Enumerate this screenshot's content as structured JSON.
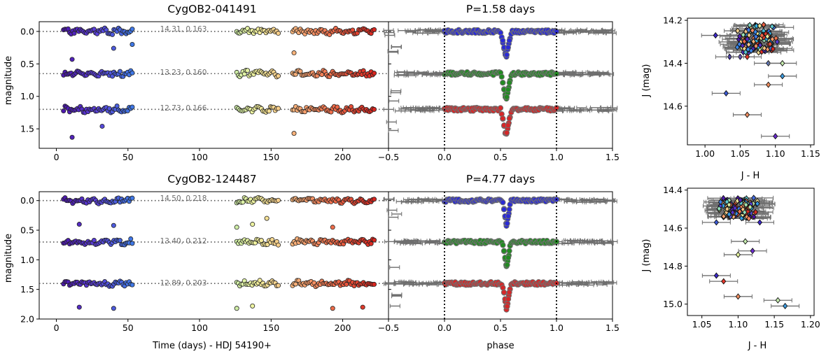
{
  "chart_data": [
    {
      "id": "top",
      "type": "scatter",
      "title": "CygOB2-041491",
      "light_curve": {
        "xlabel": "",
        "ylabel": "magnitude",
        "xlim": [
          -12,
          232
        ],
        "ylim": [
          1.8,
          -0.15
        ],
        "xticks": [
          0,
          50,
          100,
          150,
          200
        ],
        "yticks": [
          0.0,
          0.5,
          1.0,
          1.5
        ],
        "observing_windows": [
          [
            5,
            53
          ],
          [
            126,
            155
          ],
          [
            165,
            222
          ]
        ],
        "offsets": [
          0.0,
          0.65,
          1.2
        ],
        "annotations": [
          "14.31,  0.163",
          "13.23,  0.160",
          "12.73,  0.166"
        ],
        "dip_points": [
          [
            11,
            0.43
          ],
          [
            40,
            0.26
          ],
          [
            53,
            0.2
          ],
          [
            166,
            0.33
          ],
          [
            11,
            1.63
          ],
          [
            32,
            1.46
          ],
          [
            166,
            1.57
          ]
        ]
      },
      "phase": {
        "title": "P=1.58 days",
        "xlabel": "",
        "xlim": [
          -0.5,
          1.5
        ],
        "xticks": [
          -0.5,
          0.0,
          0.5,
          1.0,
          1.5
        ],
        "eclipse_center": 0.55,
        "eclipse_depth": 0.42,
        "eclipse_halfwidth": 0.05,
        "vlines": [
          0.0,
          1.0
        ],
        "band_colors": [
          "#2b2bd6",
          "#228b22",
          "#d62728"
        ]
      },
      "color_mag": {
        "xlabel": "J - H",
        "ylabel": "J (mag)",
        "xlim": [
          0.975,
          1.155
        ],
        "ylim": [
          14.78,
          14.19
        ],
        "xticks": [
          1.0,
          1.05,
          1.1,
          1.15
        ],
        "yticks": [
          14.2,
          14.4,
          14.6
        ],
        "cluster": {
          "x_center": 1.075,
          "x_spread": 0.05,
          "y_min": 14.22,
          "y_max": 14.35
        },
        "outliers": [
          {
            "x": 1.015,
            "y": 14.27,
            "color": "#3b28cc"
          },
          {
            "x": 1.035,
            "y": 14.37,
            "color": "#3b28cc"
          },
          {
            "x": 1.05,
            "y": 14.37,
            "color": "#5a3fd8"
          },
          {
            "x": 1.06,
            "y": 14.37,
            "color": "#e8372a"
          },
          {
            "x": 1.09,
            "y": 14.4,
            "color": "#5a7fe8"
          },
          {
            "x": 1.11,
            "y": 14.4,
            "color": "#c6ecae"
          },
          {
            "x": 1.11,
            "y": 14.46,
            "color": "#3c9be0"
          },
          {
            "x": 1.09,
            "y": 14.5,
            "color": "#f08d5f"
          },
          {
            "x": 1.03,
            "y": 14.54,
            "color": "#3b5ad6"
          },
          {
            "x": 1.06,
            "y": 14.64,
            "color": "#f08d5f"
          },
          {
            "x": 1.1,
            "y": 14.74,
            "color": "#6a2cd0"
          }
        ]
      }
    },
    {
      "id": "bottom",
      "type": "scatter",
      "title": "CygOB2-124487",
      "light_curve": {
        "xlabel": "Time (days) - HDJ 54190+",
        "ylabel": "magnitude",
        "xlim": [
          -12,
          232
        ],
        "ylim": [
          2.0,
          -0.15
        ],
        "xticks": [
          0,
          50,
          100,
          150,
          200
        ],
        "yticks": [
          0.0,
          0.5,
          1.0,
          1.5,
          2.0
        ],
        "observing_windows": [
          [
            5,
            53
          ],
          [
            126,
            155
          ],
          [
            165,
            222
          ]
        ],
        "offsets": [
          0.0,
          0.7,
          1.4
        ],
        "annotations": [
          "14.50,  0.218",
          "13.40,  0.212",
          "12.89,  0.203"
        ],
        "dip_points": [
          [
            16,
            0.4
          ],
          [
            40,
            0.42
          ],
          [
            126,
            0.45
          ],
          [
            137,
            0.4
          ],
          [
            147,
            0.3
          ],
          [
            193,
            0.45
          ],
          [
            16,
            1.8
          ],
          [
            40,
            1.82
          ],
          [
            126,
            1.82
          ],
          [
            137,
            1.78
          ],
          [
            193,
            1.82
          ],
          [
            214,
            1.8
          ]
        ]
      },
      "phase": {
        "title": "P=4.77 days",
        "xlabel": "phase",
        "xlim": [
          -0.5,
          1.5
        ],
        "xticks": [
          -0.5,
          0.0,
          0.5,
          1.0,
          1.5
        ],
        "eclipse_center": 0.555,
        "eclipse_depth": 0.45,
        "eclipse_halfwidth": 0.04,
        "vlines": [
          0.0,
          1.0
        ],
        "band_colors": [
          "#2b2bd6",
          "#228b22",
          "#d62728"
        ]
      },
      "color_mag": {
        "xlabel": "J - H",
        "ylabel": "J (mag)",
        "xlim": [
          1.03,
          1.205
        ],
        "ylim": [
          15.06,
          14.39
        ],
        "xticks": [
          1.05,
          1.1,
          1.15,
          1.2
        ],
        "yticks": [
          14.4,
          14.6,
          14.8,
          15.0
        ],
        "cluster": {
          "x_center": 1.1,
          "x_spread": 0.05,
          "y_min": 14.44,
          "y_max": 14.55
        },
        "outliers": [
          {
            "x": 1.07,
            "y": 14.57,
            "color": "#3b5ad6"
          },
          {
            "x": 1.13,
            "y": 14.57,
            "color": "#3b28cc"
          },
          {
            "x": 1.11,
            "y": 14.67,
            "color": "#c6ecae"
          },
          {
            "x": 1.12,
            "y": 14.72,
            "color": "#6a2cd0"
          },
          {
            "x": 1.1,
            "y": 14.74,
            "color": "#e6f5a0"
          },
          {
            "x": 1.07,
            "y": 14.85,
            "color": "#3b28cc"
          },
          {
            "x": 1.08,
            "y": 14.88,
            "color": "#e8372a"
          },
          {
            "x": 1.1,
            "y": 14.96,
            "color": "#f08d5f"
          },
          {
            "x": 1.155,
            "y": 14.98,
            "color": "#c6ecae"
          },
          {
            "x": 1.165,
            "y": 15.01,
            "color": "#3c9be0"
          }
        ]
      }
    }
  ]
}
